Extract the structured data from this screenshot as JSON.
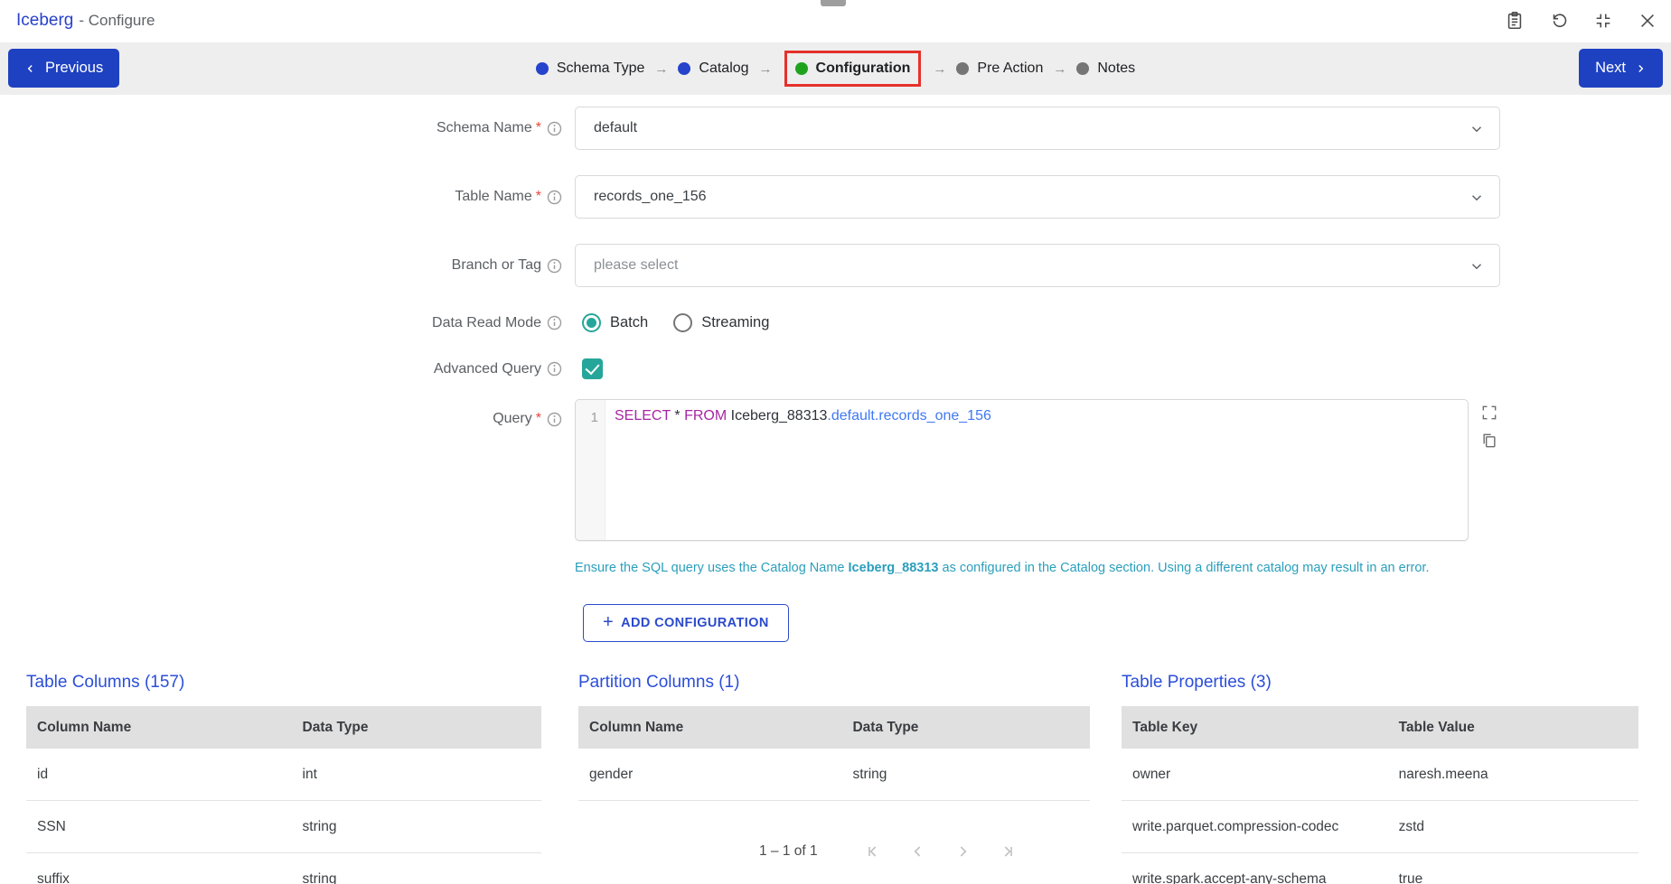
{
  "window": {
    "title": "Iceberg",
    "subtitle": "- Configure"
  },
  "header_icons": [
    "notes-icon",
    "reset-icon",
    "compress-icon",
    "close-icon"
  ],
  "stepper": {
    "previous_label": "Previous",
    "next_label": "Next",
    "separator": "→",
    "steps": [
      {
        "label": "Schema Type",
        "status": "completed"
      },
      {
        "label": "Catalog",
        "status": "completed"
      },
      {
        "label": "Configuration",
        "status": "active"
      },
      {
        "label": "Pre Action",
        "status": "pending"
      },
      {
        "label": "Notes",
        "status": "pending"
      }
    ]
  },
  "form": {
    "schema_name": {
      "label": "Schema Name",
      "marker": "*",
      "value": "default"
    },
    "table_name": {
      "label": "Table Name",
      "marker": "*",
      "value": "records_one_156"
    },
    "branch_or_tag": {
      "label": "Branch or Tag",
      "placeholder": "please select"
    },
    "data_read_mode": {
      "label": "Data Read Mode",
      "options": [
        "Batch",
        "Streaming"
      ],
      "selected": "Batch"
    },
    "advanced_query": {
      "label": "Advanced Query",
      "checked": true
    },
    "query": {
      "label": "Query",
      "marker": "*"
    }
  },
  "query_editor": {
    "line_number": "1",
    "tokens": [
      {
        "text": "SELECT",
        "type": "keyword"
      },
      {
        "text": " * ",
        "type": "plain"
      },
      {
        "text": "FROM",
        "type": "keyword"
      },
      {
        "text": " Iceberg_88313",
        "type": "plain"
      },
      {
        "text": ".default.records_one_156",
        "type": "entity"
      }
    ]
  },
  "catalog_note": {
    "prefix": "Ensure the SQL query uses the Catalog Name ",
    "catalog": "Iceberg_88313",
    "suffix": " as configured in the Catalog section. Using a different catalog may result in an error."
  },
  "actions": {
    "add_plus": "+",
    "add_configuration": "ADD CONFIGURATION"
  },
  "tables": {
    "table_columns": {
      "title": "Table Columns (157)",
      "headers": [
        "Column Name",
        "Data Type"
      ],
      "rows": [
        [
          "id",
          "int"
        ],
        [
          "SSN",
          "string"
        ],
        [
          "suffix",
          "string"
        ]
      ]
    },
    "partition_columns": {
      "title": "Partition Columns (1)",
      "headers": [
        "Column Name",
        "Data Type"
      ],
      "rows": [
        [
          "gender",
          "string"
        ]
      ]
    },
    "table_properties": {
      "title": "Table Properties (3)",
      "headers": [
        "Table Key",
        "Table Value"
      ],
      "rows": [
        [
          "owner",
          "naresh.meena"
        ],
        [
          "write.parquet.compression-codec",
          "zstd"
        ],
        [
          "write.spark.accept-any-schema",
          "true"
        ]
      ]
    }
  },
  "pagination": {
    "label": "1 – 1 of 1"
  },
  "colors": {
    "primary_blue": "#1e41c1",
    "section_title_blue": "#2b4ed8",
    "step_completed_blue": "#2543cb",
    "step_active_green": "#1fa31f",
    "step_pending_gray": "#757575",
    "highlight_red": "#e5312b",
    "control_teal": "#26a69a",
    "note_teal": "#2a9fbc",
    "sql_keyword_purple": "#a626a4",
    "sql_entity_blue": "#4078f2"
  }
}
